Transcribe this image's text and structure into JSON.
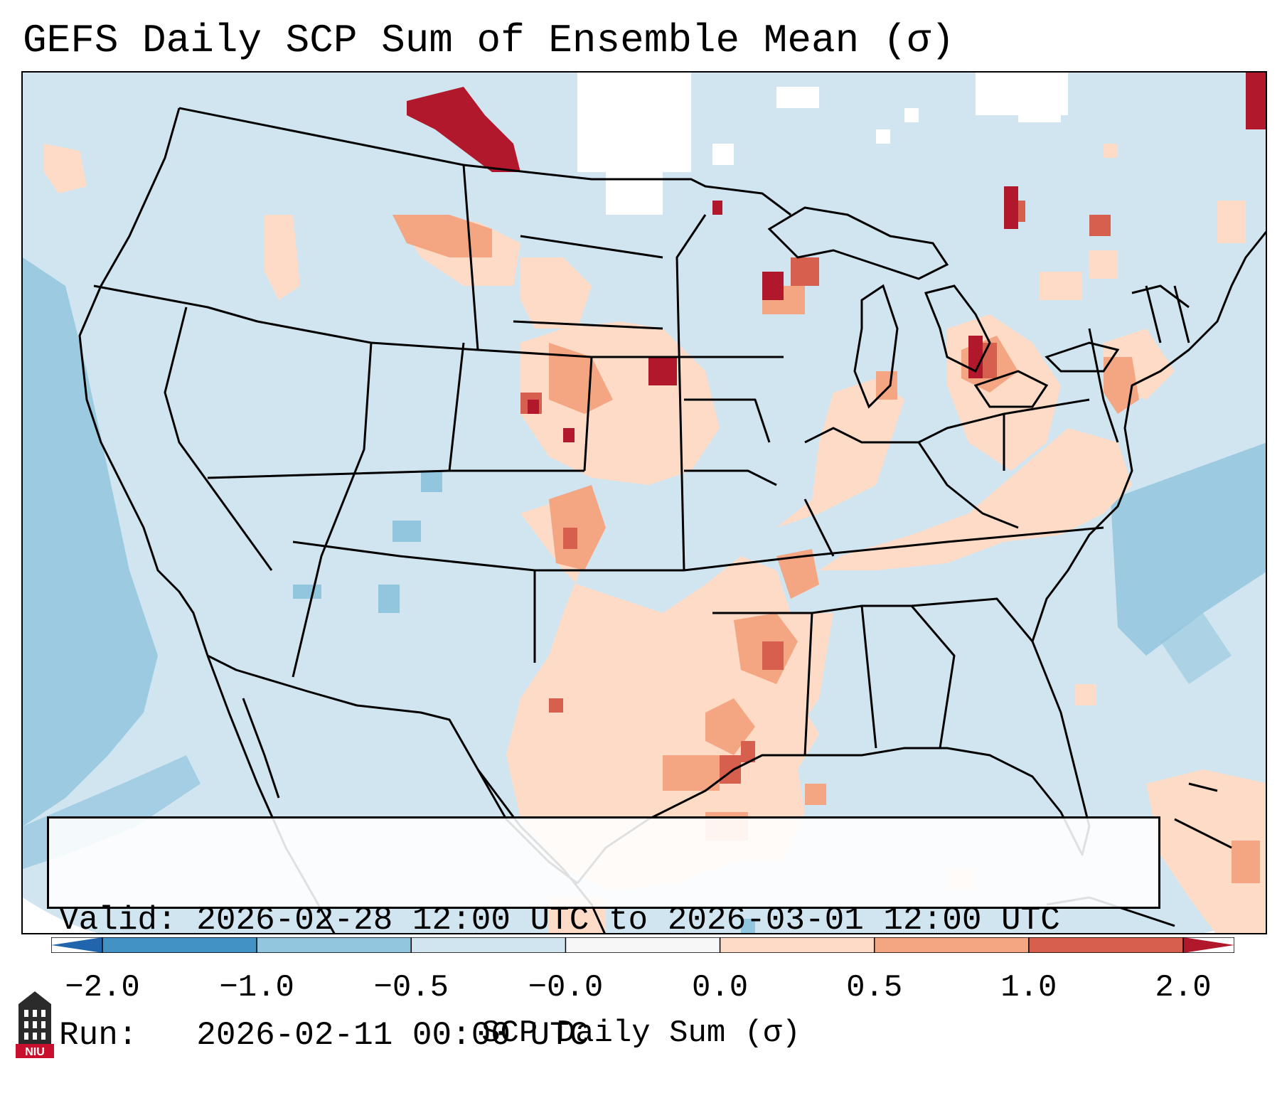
{
  "title": "GEFS Daily SCP Sum of Ensemble Mean (σ)",
  "info": {
    "valid_label": "Valid:",
    "valid_value": "2026-02-28 12:00 UTC to 2026-03-01 12:00 UTC",
    "run_label": "Run:",
    "run_value": "2026-02-11 00:00 UTC"
  },
  "colorbar": {
    "label": "SCP Daily Sum (σ)",
    "ticks": [
      "−2.0",
      "−1.0",
      "−0.5",
      "−0.0",
      "0.0",
      "0.5",
      "1.0",
      "2.0"
    ],
    "bin_colors": [
      "#4292c6",
      "#92c5de",
      "#d1e5f0",
      "#f7f7f7",
      "#fddbc7",
      "#f4a582",
      "#d6604d",
      "#b2182b"
    ],
    "extend_colors": {
      "min": "#2166ac",
      "max": "#b2182b"
    }
  },
  "map_colors": {
    "background": "#d1e5f0",
    "neg_light": "#92c5de",
    "zero": "#ffffff",
    "pos_light": "#fddbc7",
    "pos_mid": "#f4a582",
    "pos_high": "#d6604d",
    "pos_max": "#b2182b",
    "borders": "#000000"
  },
  "logo": {
    "text": "NIU",
    "colors": {
      "base": "#c8102e",
      "tower": "#2b2b2b"
    }
  }
}
